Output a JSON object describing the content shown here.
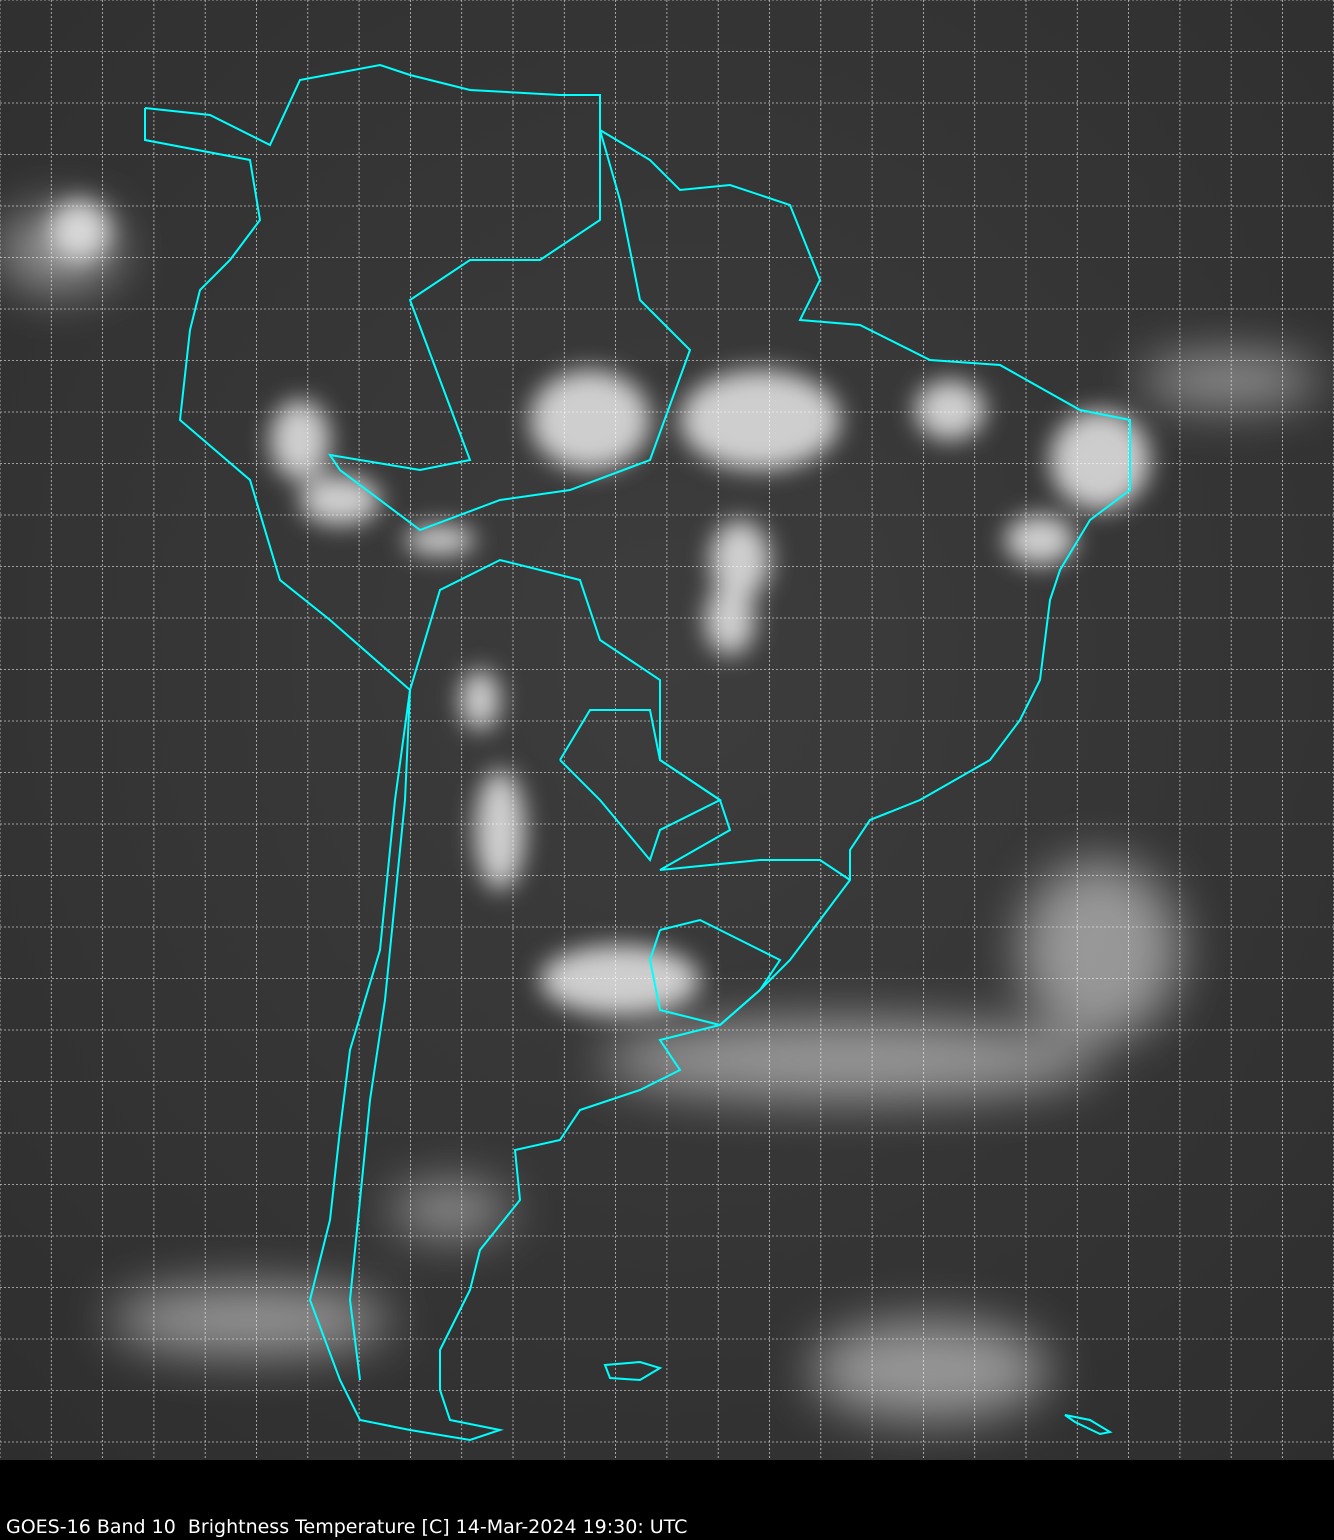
{
  "caption": "GOES-16 Band 10  Brightness Temperature [C] 14-Mar-2024 19:30: UTC",
  "colors": {
    "background": "#3a3a3a",
    "borders": "#00ffff",
    "grid": "#ffffff",
    "clouds": "#f0f0f0"
  },
  "map": {
    "region": "South America",
    "product": "infrared brightness temperature grayscale",
    "grid": "dashed lat/lon lines"
  }
}
